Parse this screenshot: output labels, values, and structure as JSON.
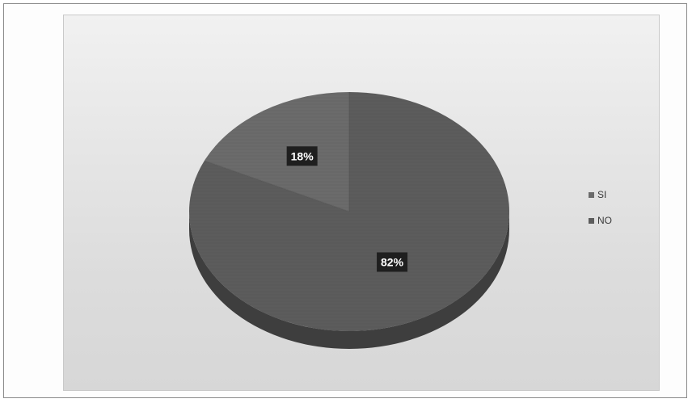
{
  "chart_data": {
    "type": "pie",
    "title": "",
    "categories": [
      "SI",
      "NO"
    ],
    "values": [
      18,
      82
    ],
    "data_labels": [
      "18%",
      "82%"
    ],
    "legend_placement": "right",
    "colors": {
      "SI": "#6b6b6b",
      "NO": "#5c5c5c",
      "side": "#3e3e3e",
      "label_bg": "#1f1f1f",
      "label_text": "#ffffff"
    },
    "style": "3d"
  },
  "legend": {
    "items": [
      {
        "label": "SI",
        "color": "#6b6b6b"
      },
      {
        "label": "NO",
        "color": "#5c5c5c"
      }
    ]
  }
}
